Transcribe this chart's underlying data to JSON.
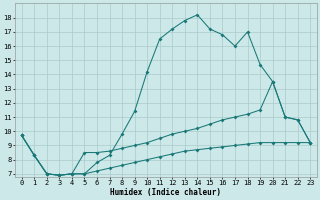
{
  "xlabel": "Humidex (Indice chaleur)",
  "bg_color": "#cce8e8",
  "grid_color": "#aacccc",
  "line_color": "#1a7878",
  "xlim": [
    -0.5,
    23.5
  ],
  "ylim": [
    6.8,
    19.0
  ],
  "xticks": [
    0,
    1,
    2,
    3,
    4,
    5,
    6,
    7,
    8,
    9,
    10,
    11,
    12,
    13,
    14,
    15,
    16,
    17,
    18,
    19,
    20,
    21,
    22,
    23
  ],
  "yticks": [
    7,
    8,
    9,
    10,
    11,
    12,
    13,
    14,
    15,
    16,
    17,
    18
  ],
  "line2_x": [
    0,
    1,
    2,
    3,
    4,
    5,
    6,
    7,
    8,
    9,
    10,
    11,
    12,
    13,
    14,
    15,
    16,
    17,
    18,
    19,
    20,
    21,
    22,
    23
  ],
  "line2_y": [
    9.7,
    8.3,
    7.0,
    6.9,
    7.0,
    7.0,
    7.8,
    8.3,
    9.8,
    11.4,
    14.2,
    16.5,
    17.2,
    17.8,
    18.2,
    17.2,
    16.8,
    16.0,
    17.0,
    14.7,
    13.5,
    11.0,
    10.8,
    9.2
  ],
  "line1_x": [
    0,
    1,
    2,
    3,
    4,
    5,
    6,
    7,
    8,
    9,
    10,
    11,
    12,
    13,
    14,
    15,
    16,
    17,
    18,
    19,
    20,
    21,
    22,
    23
  ],
  "line1_y": [
    9.7,
    8.3,
    7.0,
    6.9,
    7.0,
    8.5,
    8.5,
    8.6,
    8.8,
    9.0,
    9.2,
    9.5,
    9.8,
    10.0,
    10.2,
    10.5,
    10.8,
    11.0,
    11.2,
    11.5,
    13.5,
    11.0,
    10.8,
    9.2
  ],
  "line3_x": [
    0,
    1,
    2,
    3,
    4,
    5,
    6,
    7,
    8,
    9,
    10,
    11,
    12,
    13,
    14,
    15,
    16,
    17,
    18,
    19,
    20,
    21,
    22,
    23
  ],
  "line3_y": [
    9.7,
    8.3,
    7.0,
    6.9,
    7.0,
    7.0,
    7.2,
    7.4,
    7.6,
    7.8,
    8.0,
    8.2,
    8.4,
    8.6,
    8.7,
    8.8,
    8.9,
    9.0,
    9.1,
    9.2,
    9.2,
    9.2,
    9.2,
    9.2
  ]
}
